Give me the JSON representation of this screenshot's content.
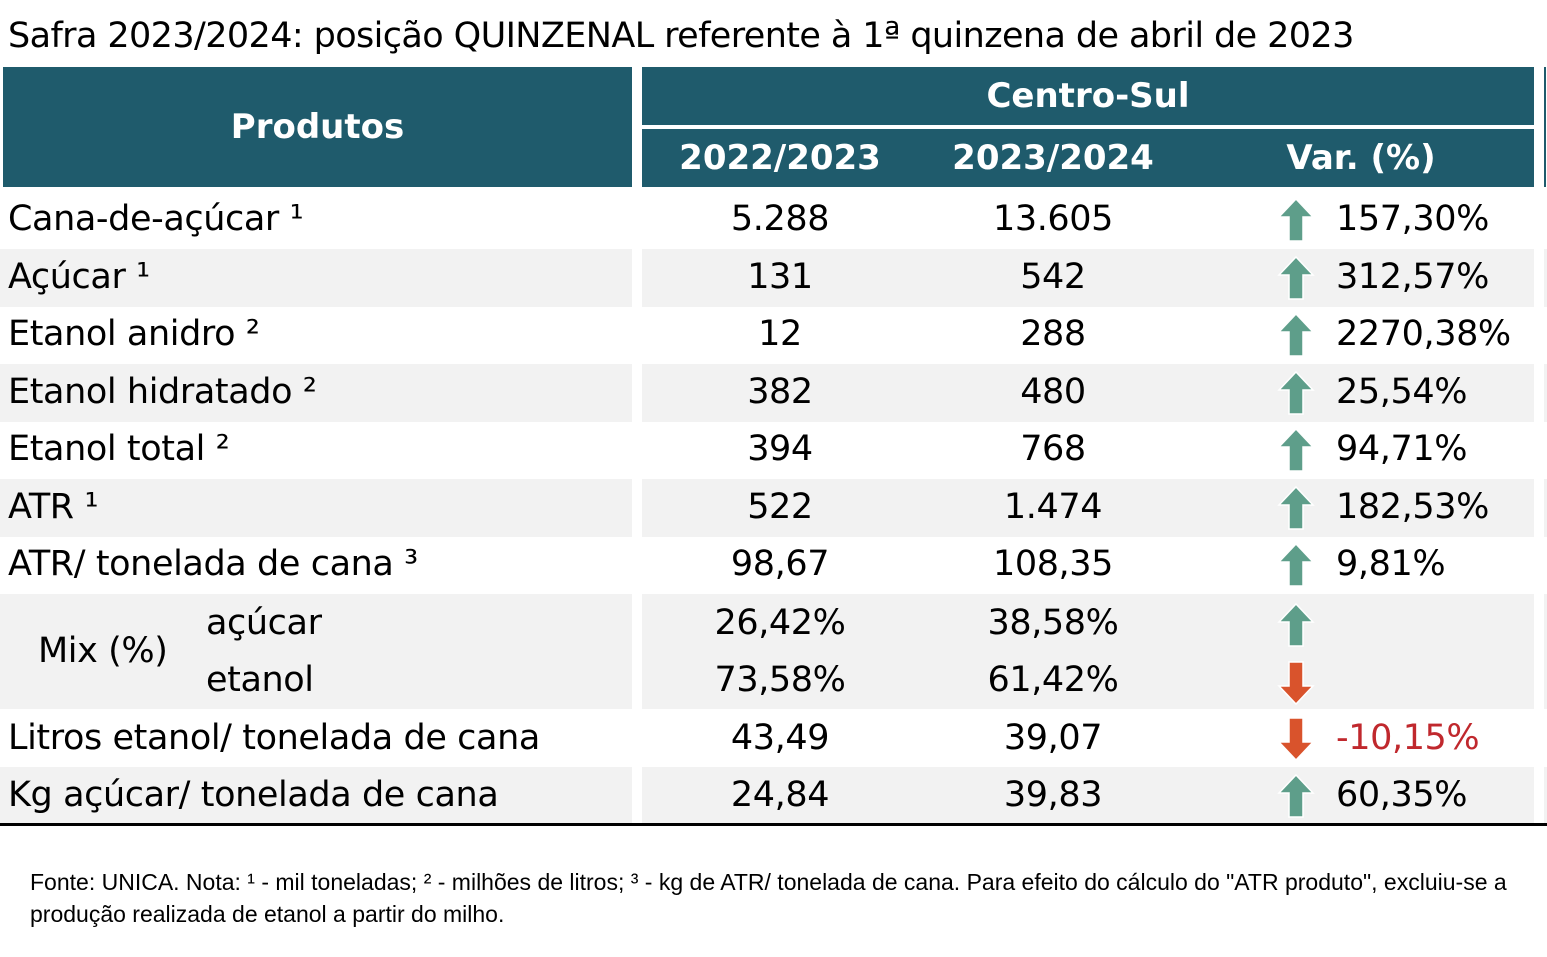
{
  "title": "Safra 2023/2024: posição QUINZENAL referente à 1ª quinzena de abril de 2023",
  "header": {
    "produtos": "Produtos",
    "region": "Centro-Sul",
    "col_prev": "2022/2023",
    "col_curr": "2023/2024",
    "col_var": "Var. (%)"
  },
  "rows": [
    {
      "label": "Cana-de-açúcar ¹",
      "prev": "5.288",
      "curr": "13.605",
      "var": "157,30%",
      "dir": "up"
    },
    {
      "label": "Açúcar ¹",
      "prev": "131",
      "curr": "542",
      "var": "312,57%",
      "dir": "up"
    },
    {
      "label": "Etanol anidro ²",
      "prev": "12",
      "curr": "288",
      "var": "2270,38%",
      "dir": "up"
    },
    {
      "label": "Etanol hidratado ²",
      "prev": "382",
      "curr": "480",
      "var": "25,54%",
      "dir": "up"
    },
    {
      "label": "Etanol total ²",
      "prev": "394",
      "curr": "768",
      "var": "94,71%",
      "dir": "up"
    },
    {
      "label": "ATR ¹",
      "prev": "522",
      "curr": "1.474",
      "var": "182,53%",
      "dir": "up"
    },
    {
      "label": "ATR/ tonelada de cana ³",
      "prev": "98,67",
      "curr": "108,35",
      "var": "9,81%",
      "dir": "up"
    }
  ],
  "mix": {
    "label": "Mix (%)",
    "acucar": {
      "label": "açúcar",
      "prev": "26,42%",
      "curr": "38,58%",
      "dir": "up"
    },
    "etanol": {
      "label": "etanol",
      "prev": "73,58%",
      "curr": "61,42%",
      "dir": "down"
    }
  },
  "rows2": [
    {
      "label": "Litros etanol/ tonelada de cana",
      "prev": "43,49",
      "curr": "39,07",
      "var": "-10,15%",
      "dir": "down"
    },
    {
      "label": "Kg açúcar/ tonelada de cana",
      "prev": "24,84",
      "curr": "39,83",
      "var": "60,35%",
      "dir": "up"
    }
  ],
  "note": "Fonte: UNICA. Nota: ¹ - mil toneladas; ² - milhões de litros; ³ - kg de ATR/ tonelada de cana. Para efeito do cálculo do \"ATR produto\", excluiu-se a produção realizada de etanol a partir do milho.",
  "colors": {
    "header": "#1f5b6c",
    "up_arrow": "#5e9e8a",
    "down_arrow": "#d9532c",
    "negative": "#c0282d",
    "shade": "#f2f2f2"
  }
}
